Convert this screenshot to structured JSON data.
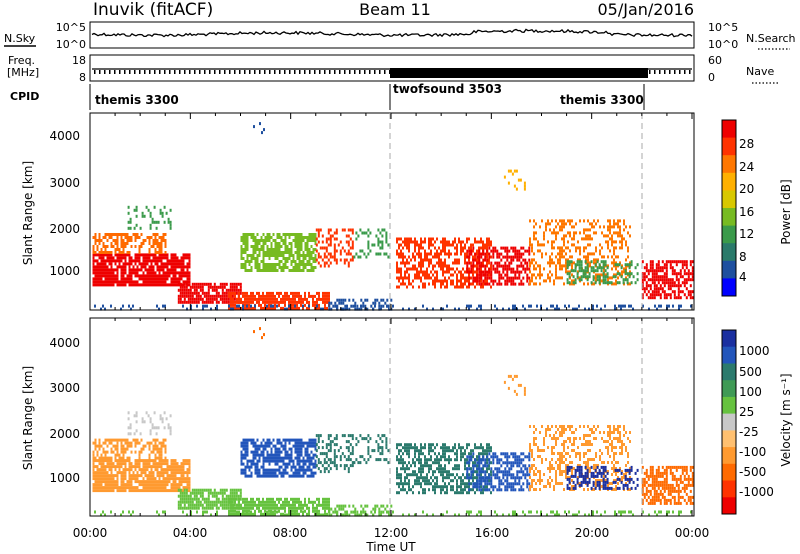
{
  "header": {
    "station": "Inuvik (fitACF)",
    "beam": "Beam 11",
    "date": "05/Jan/2016"
  },
  "top_panels": {
    "nsky_label": "N.Sky",
    "nsky_ticks": [
      "10^5",
      "10^0"
    ],
    "nsearch_label": "N.Search",
    "nsearch_ticks": [
      "10^5",
      "10^0"
    ],
    "freq_label_1": "Freq.",
    "freq_label_2": "[MHz]",
    "freq_ticks": [
      "18",
      "8"
    ],
    "nave_label": "Nave",
    "nave_ticks": [
      "60",
      "0"
    ],
    "cpid_label": "CPID"
  },
  "chart_data": [
    {
      "type": "heatmap",
      "panel": "power",
      "ylabel": "Slant Range [km]",
      "yticks": [
        "4000",
        "3000",
        "2000",
        "1000"
      ],
      "ylim": [
        200,
        4550
      ],
      "xlim_hours": [
        0,
        24
      ],
      "colorbar_label": "Power [dB]",
      "colorbar_ticks": [
        "28",
        "24",
        "20",
        "16",
        "12",
        "8",
        "4"
      ],
      "colorbar_colors": [
        "#ee0000",
        "#ff3300",
        "#ff7700",
        "#ffb000",
        "#d8c800",
        "#77bb22",
        "#3a9a4a",
        "#2a7a6a",
        "#1e4f9f",
        "#0000ff"
      ]
    },
    {
      "type": "heatmap",
      "panel": "velocity",
      "ylabel": "Slant Range [km]",
      "yticks": [
        "4000",
        "3000",
        "2000",
        "1000"
      ],
      "ylim": [
        200,
        4550
      ],
      "xlim_hours": [
        0,
        24
      ],
      "colorbar_label": "Velocity [m s⁻¹]",
      "colorbar_ticks": [
        "1000",
        "500",
        "100",
        "25",
        "-25",
        "-100",
        "-500",
        "-1000"
      ],
      "colorbar_colors": [
        "#1a2fa0",
        "#2255bb",
        "#2b7a6d",
        "#3f9a55",
        "#66c23f",
        "#c8c8c8",
        "#ffc070",
        "#ff9a30",
        "#ff6a00",
        "#ff3300",
        "#ee0000"
      ]
    }
  ],
  "cpid_segments": [
    {
      "label": "themis 3300",
      "start_h": 0
    },
    {
      "label": "twofsound 3503",
      "start_h": 12
    },
    {
      "label": "themis 3300",
      "start_h": 22
    }
  ],
  "x_axis": {
    "title": "Time UT",
    "ticks": [
      "00:00",
      "04:00",
      "08:00",
      "12:00",
      "16:00",
      "20:00",
      "00:00"
    ]
  },
  "scatter_blobs": [
    {
      "t0": 0.1,
      "t1": 4.0,
      "r0": 750,
      "r1": 1450,
      "p": "#ee0000",
      "v": "#ff9a30",
      "d": 0.85
    },
    {
      "t0": 0.1,
      "t1": 3.0,
      "r0": 1450,
      "r1": 1900,
      "p": "#ff6a00",
      "v": "#ff9a30",
      "d": 0.55
    },
    {
      "t0": 1.5,
      "t1": 3.2,
      "r0": 2000,
      "r1": 2500,
      "p": "#3a9a4a",
      "v": "#c8c8c8",
      "d": 0.25
    },
    {
      "t0": 3.5,
      "t1": 6.0,
      "r0": 400,
      "r1": 800,
      "p": "#ee0000",
      "v": "#66c23f",
      "d": 0.8
    },
    {
      "t0": 5.5,
      "t1": 9.5,
      "r0": 250,
      "r1": 600,
      "p": "#ff3300",
      "v": "#66c23f",
      "d": 0.7
    },
    {
      "t0": 9.5,
      "t1": 12.0,
      "r0": 220,
      "r1": 450,
      "p": "#1e4f9f",
      "v": "#66c23f",
      "d": 0.45
    },
    {
      "t0": 6.0,
      "t1": 9.0,
      "r0": 1100,
      "r1": 1900,
      "p": "#77bb22",
      "v": "#2255bb",
      "d": 0.7
    },
    {
      "t0": 9.0,
      "t1": 10.5,
      "r0": 1200,
      "r1": 2000,
      "p": "#ff3300",
      "v": "#2b7a6d",
      "d": 0.45
    },
    {
      "t0": 10.5,
      "t1": 11.9,
      "r0": 1400,
      "r1": 2000,
      "p": "#3a9a4a",
      "v": "#2b7a6d",
      "d": 0.3
    },
    {
      "t0": 12.2,
      "t1": 16.0,
      "r0": 700,
      "r1": 1800,
      "p": "#ff3300",
      "v": "#2b7a6d",
      "d": 0.55
    },
    {
      "t0": 15.0,
      "t1": 17.5,
      "r0": 800,
      "r1": 1600,
      "p": "#ee0000",
      "v": "#2255bb",
      "d": 0.55
    },
    {
      "t0": 17.5,
      "t1": 21.5,
      "r0": 800,
      "r1": 2200,
      "p": "#ff7700",
      "v": "#ff9a30",
      "d": 0.35
    },
    {
      "t0": 19.0,
      "t1": 21.8,
      "r0": 800,
      "r1": 1300,
      "p": "#3a9a4a",
      "v": "#1a2fa0",
      "d": 0.4
    },
    {
      "t0": 22.0,
      "t1": 24.0,
      "r0": 500,
      "r1": 1300,
      "p": "#ee0000",
      "v": "#ff6a00",
      "d": 0.6
    },
    {
      "t0": 0.0,
      "t1": 24.0,
      "r0": 200,
      "r1": 320,
      "p": "#1e4f9f",
      "v": "#66c23f",
      "d": 0.25
    },
    {
      "t0": 16.5,
      "t1": 17.3,
      "r0": 2900,
      "r1": 3300,
      "p": "#ffb000",
      "v": "#ff9a30",
      "d": 0.3
    },
    {
      "t0": 6.5,
      "t1": 7.0,
      "r0": 4150,
      "r1": 4350,
      "p": "#1e4f9f",
      "v": "#ff6a00",
      "d": 0.25
    }
  ]
}
